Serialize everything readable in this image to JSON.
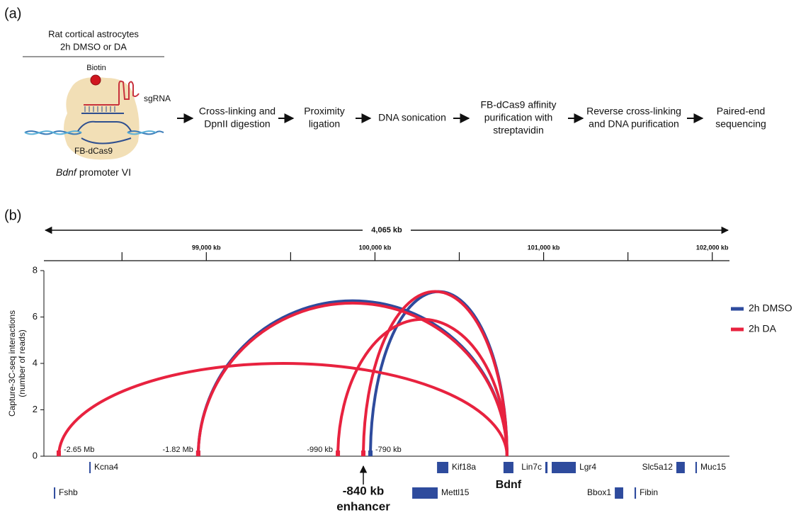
{
  "panel_a": {
    "label": "(a)",
    "condition": [
      "Rat cortical astrocytes",
      "2h DMSO or DA"
    ],
    "biotin": "Biotin",
    "sgrna": "sgRNA",
    "protein": "FB-dCas9",
    "gene": "Bdnf",
    "promoter": "promoter VI",
    "steps": [
      [
        "Cross-linking and",
        "DpnII digestion"
      ],
      [
        "Proximity",
        "ligation"
      ],
      [
        "DNA sonication"
      ],
      [
        "FB-dCas9 affinity",
        "purification with",
        "streptavidin"
      ],
      [
        "Reverse cross-linking",
        "and DNA purification"
      ],
      [
        "Paired-end",
        "sequencing"
      ]
    ]
  },
  "chart_data": {
    "type": "arc",
    "panel_label": "(b)",
    "span_label": "4,065 kb",
    "xlim": [
      98037,
      102102
    ],
    "xticks": [
      {
        "value": 99000,
        "label": "99,000 kb"
      },
      {
        "value": 100000,
        "label": "100,000 kb"
      },
      {
        "value": 101000,
        "label": "101,000 kb"
      },
      {
        "value": 102000,
        "label": "102,000 kb"
      }
    ],
    "minor_xticks": [
      98500,
      99500,
      100500,
      101500
    ],
    "ylabel": [
      "Capture-3C-seq interactions",
      "(number of reads)"
    ],
    "ylim": [
      0,
      8
    ],
    "yticks": [
      0,
      2,
      4,
      6,
      8
    ],
    "legend": "right",
    "series": [
      {
        "name": "2h DMSO",
        "color": "#2e4b9d",
        "arcs": [
          {
            "start": 98952,
            "end": 100783,
            "value": 6.7,
            "label": "-1.82 Mb"
          },
          {
            "start": 99973,
            "end": 100783,
            "value": 7.1,
            "label": "-790 kb"
          }
        ]
      },
      {
        "name": "2h DA",
        "color": "#e8223f",
        "arcs": [
          {
            "start": 98125,
            "end": 100783,
            "value": 4.0,
            "label": "-2.65 Mb"
          },
          {
            "start": 98952,
            "end": 100783,
            "value": 6.6
          },
          {
            "start": 99780,
            "end": 100783,
            "value": 5.9,
            "label": "-990 kb"
          },
          {
            "start": 99931,
            "end": 100783,
            "value": 7.1
          }
        ]
      }
    ],
    "annotation": [
      "-840 kb",
      "enhancer"
    ],
    "genes": [
      {
        "name": "Kcna4",
        "start": 98306,
        "end": 98314
      },
      {
        "name": "Fshb",
        "start": 98096,
        "end": 98104
      },
      {
        "name": "Mettl15",
        "start": 100221,
        "end": 100372
      },
      {
        "name": "Kif18a",
        "start": 100368,
        "end": 100435
      },
      {
        "name": "Bdnf",
        "start": 100762,
        "end": 100821
      },
      {
        "name": "Lin7c",
        "start": 101010,
        "end": 101023
      },
      {
        "name": "Lgr4",
        "start": 101048,
        "end": 101191
      },
      {
        "name": "Bbox1",
        "start": 101422,
        "end": 101472
      },
      {
        "name": "Fibin",
        "start": 101539,
        "end": 101548
      },
      {
        "name": "Slc5a12",
        "start": 101787,
        "end": 101837
      },
      {
        "name": "Muc15",
        "start": 101900,
        "end": 101909
      }
    ]
  }
}
